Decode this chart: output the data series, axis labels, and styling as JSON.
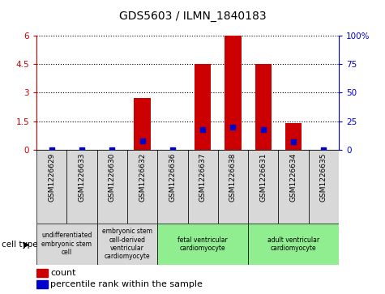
{
  "title": "GDS5603 / ILMN_1840183",
  "samples": [
    "GSM1226629",
    "GSM1226633",
    "GSM1226630",
    "GSM1226632",
    "GSM1226636",
    "GSM1226637",
    "GSM1226638",
    "GSM1226631",
    "GSM1226634",
    "GSM1226635"
  ],
  "count_values": [
    0.0,
    0.0,
    0.0,
    2.7,
    0.0,
    4.5,
    6.0,
    4.5,
    1.4,
    0.0
  ],
  "percentile_values": [
    0.0,
    0.0,
    0.0,
    8.0,
    0.0,
    18.0,
    20.0,
    18.0,
    7.0,
    0.0
  ],
  "ylim_left": [
    0,
    6
  ],
  "ylim_right": [
    0,
    100
  ],
  "yticks_left": [
    0,
    1.5,
    3.0,
    4.5,
    6.0
  ],
  "yticks_right": [
    0,
    25,
    50,
    75,
    100
  ],
  "ytick_labels_left": [
    "0",
    "1.5",
    "3",
    "4.5",
    "6"
  ],
  "ytick_labels_right": [
    "0",
    "25",
    "50",
    "75",
    "100%"
  ],
  "bar_color": "#cc0000",
  "dot_color": "#0000cc",
  "cell_types": [
    {
      "label": "undifferentiated\nembryonic stem\ncell",
      "start": 0,
      "end": 2,
      "color": "#d8d8d8"
    },
    {
      "label": "embryonic stem\ncell-derived\nventricular\ncardiomyocyte",
      "start": 2,
      "end": 4,
      "color": "#d8d8d8"
    },
    {
      "label": "fetal ventricular\ncardiomyocyte",
      "start": 4,
      "end": 7,
      "color": "#90ee90"
    },
    {
      "label": "adult ventricular\ncardiomyocyte",
      "start": 7,
      "end": 10,
      "color": "#90ee90"
    }
  ],
  "legend_count_label": "count",
  "legend_percentile_label": "percentile rank within the sample",
  "cell_type_label": "cell type",
  "bar_width": 0.55
}
